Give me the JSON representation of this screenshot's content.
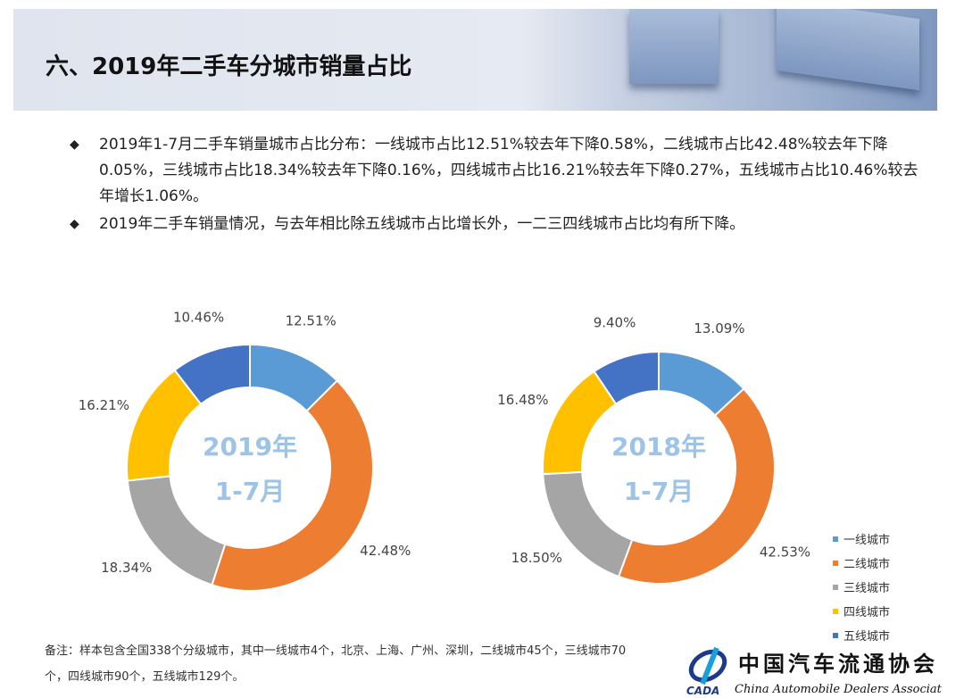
{
  "header": {
    "title": "六、2019年二手车分城市销量占比"
  },
  "bullets": [
    "2019年1-7月二手车销量城市占比分布：一线城市占比12.51%较去年下降0.58%，二线城市占比42.48%较去年下降0.05%，三线城市占比18.34%较去年下降0.16%，四线城市占比16.21%较去年下降0.27%，五线城市占比10.46%较去年增长1.06%。",
    "2019年二手车销量情况，与去年相比除五线城市占比增长外，一二三四线城市占比均有所下降。"
  ],
  "chart_data": [
    {
      "type": "pie",
      "donut": true,
      "center_label": [
        "2019年",
        "1-7月"
      ],
      "categories": [
        "一线城市",
        "二线城市",
        "三线城市",
        "四线城市",
        "五线城市"
      ],
      "values": [
        12.51,
        42.48,
        18.34,
        16.21,
        10.46
      ],
      "labels": [
        "12.51%",
        "42.48%",
        "18.34%",
        "16.21%",
        "10.46%"
      ]
    },
    {
      "type": "pie",
      "donut": true,
      "center_label": [
        "2018年",
        "1-7月"
      ],
      "categories": [
        "一线城市",
        "二线城市",
        "三线城市",
        "四线城市",
        "五线城市"
      ],
      "values": [
        13.09,
        42.53,
        18.5,
        16.48,
        9.4
      ],
      "labels": [
        "13.09%",
        "42.53%",
        "18.50%",
        "16.48%",
        "9.40%"
      ]
    }
  ],
  "legend": [
    "一线城市",
    "二线城市",
    "三线城市",
    "四线城市",
    "五线城市"
  ],
  "colors": [
    "#5b9bd5",
    "#ed7d31",
    "#a5a5a5",
    "#ffc000",
    "#4472c4"
  ],
  "center_label_color": "#9dc3e6",
  "note": "备注：样本包含全国338个分级城市，其中一线城市4个，北京、上海、广州、深圳，二线城市45个，三线城市70个，四线城市90个，五线城市129个。",
  "logo": {
    "cn": "中国汽车流通协会",
    "en": "China Automobile Dealers Association",
    "abbr": "CADA"
  }
}
